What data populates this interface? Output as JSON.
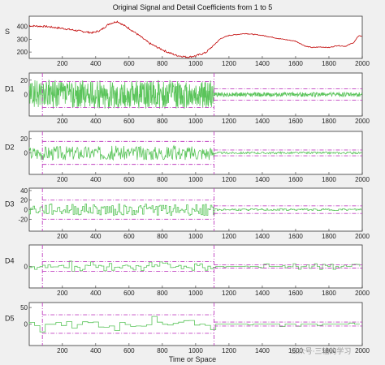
{
  "figure": {
    "title": "Original Signal and Detail Coefficients from 1 to 5",
    "xlabel": "Time or Space",
    "watermark": "公众号·三轴的学习"
  },
  "chart_data": [
    {
      "type": "line",
      "ylabel": "S",
      "xlim": [
        1,
        2000
      ],
      "ylim": [
        150,
        480
      ],
      "yticks": [
        200,
        300,
        400
      ],
      "xticks": [
        200,
        400,
        600,
        800,
        1000,
        1200,
        1400,
        1600,
        1800,
        2000
      ],
      "color": "#c00000",
      "series": [
        {
          "shape": "signal",
          "x": [
            1,
            100,
            200,
            300,
            380,
            430,
            480,
            530,
            560,
            600,
            660,
            720,
            780,
            830,
            880,
            950,
            1000,
            1060,
            1110,
            1150,
            1200,
            1300,
            1400,
            1500,
            1600,
            1660,
            1700,
            1750,
            1800,
            1850,
            1900,
            1950,
            1980,
            2000
          ],
          "y": [
            405,
            400,
            385,
            365,
            350,
            370,
            420,
            440,
            415,
            385,
            330,
            270,
            230,
            200,
            175,
            160,
            170,
            195,
            255,
            305,
            330,
            345,
            330,
            305,
            285,
            245,
            235,
            240,
            235,
            250,
            245,
            275,
            330,
            320
          ]
        }
      ]
    },
    {
      "type": "line",
      "ylabel": "D1",
      "xlim": [
        1,
        2000
      ],
      "ylim": [
        -30,
        30
      ],
      "yticks": [
        0,
        20
      ],
      "xticks": [
        200,
        400,
        600,
        800,
        1000,
        1200,
        1400,
        1600,
        1800,
        2000
      ],
      "color": "#5ac45a",
      "thresholds": [
        18,
        -18
      ],
      "thresholds_after": [
        8,
        -8
      ],
      "split": [
        80,
        1110
      ],
      "amp_before": 20,
      "amp_after": 3,
      "step": 2
    },
    {
      "type": "line",
      "ylabel": "D2",
      "xlim": [
        1,
        2000
      ],
      "ylim": [
        -30,
        30
      ],
      "yticks": [
        0,
        20
      ],
      "xticks": [
        200,
        400,
        600,
        800,
        1000,
        1200,
        1400,
        1600,
        1800,
        2000
      ],
      "color": "#5ac45a",
      "thresholds": [
        16,
        -16
      ],
      "thresholds_after": [
        4,
        -4
      ],
      "split": [
        80,
        1110
      ],
      "amp_before": 10,
      "amp_after": 1.5,
      "step": 4
    },
    {
      "type": "line",
      "ylabel": "D3",
      "xlim": [
        1,
        2000
      ],
      "ylim": [
        -45,
        45
      ],
      "yticks": [
        -20,
        0,
        20,
        40
      ],
      "xticks": [
        200,
        400,
        600,
        800,
        1000,
        1200,
        1400,
        1600,
        1800,
        2000
      ],
      "color": "#5ac45a",
      "thresholds": [
        20,
        -20
      ],
      "thresholds_after": [
        8,
        -8
      ],
      "split": [
        80,
        1110
      ],
      "amp_before": 12,
      "amp_after": 2,
      "step": 8
    },
    {
      "type": "line",
      "ylabel": "D4",
      "xlim": [
        1,
        2000
      ],
      "ylim": [
        -40,
        40
      ],
      "yticks": [
        0
      ],
      "xticks": [
        200,
        400,
        600,
        800,
        1000,
        1200,
        1400,
        1600,
        1800,
        2000
      ],
      "color": "#5ac45a",
      "thresholds": [
        9,
        -9
      ],
      "thresholds_after": [
        3,
        -3
      ],
      "split": [
        80,
        1110
      ],
      "amp_before": 10,
      "amp_after": 6,
      "step": 16
    },
    {
      "type": "line",
      "ylabel": "D5",
      "xlim": [
        1,
        2000
      ],
      "ylim": [
        -65,
        65
      ],
      "yticks": [
        0,
        50
      ],
      "xticks": [
        200,
        400,
        600,
        800,
        1000,
        1200,
        1400,
        1600,
        1800,
        2000
      ],
      "color": "#5ac45a",
      "thresholds": [
        28,
        -28
      ],
      "thresholds_after": [
        6,
        -6
      ],
      "split": [
        80,
        1110
      ],
      "amp_before": 25,
      "amp_after": 12,
      "step": 32
    }
  ]
}
